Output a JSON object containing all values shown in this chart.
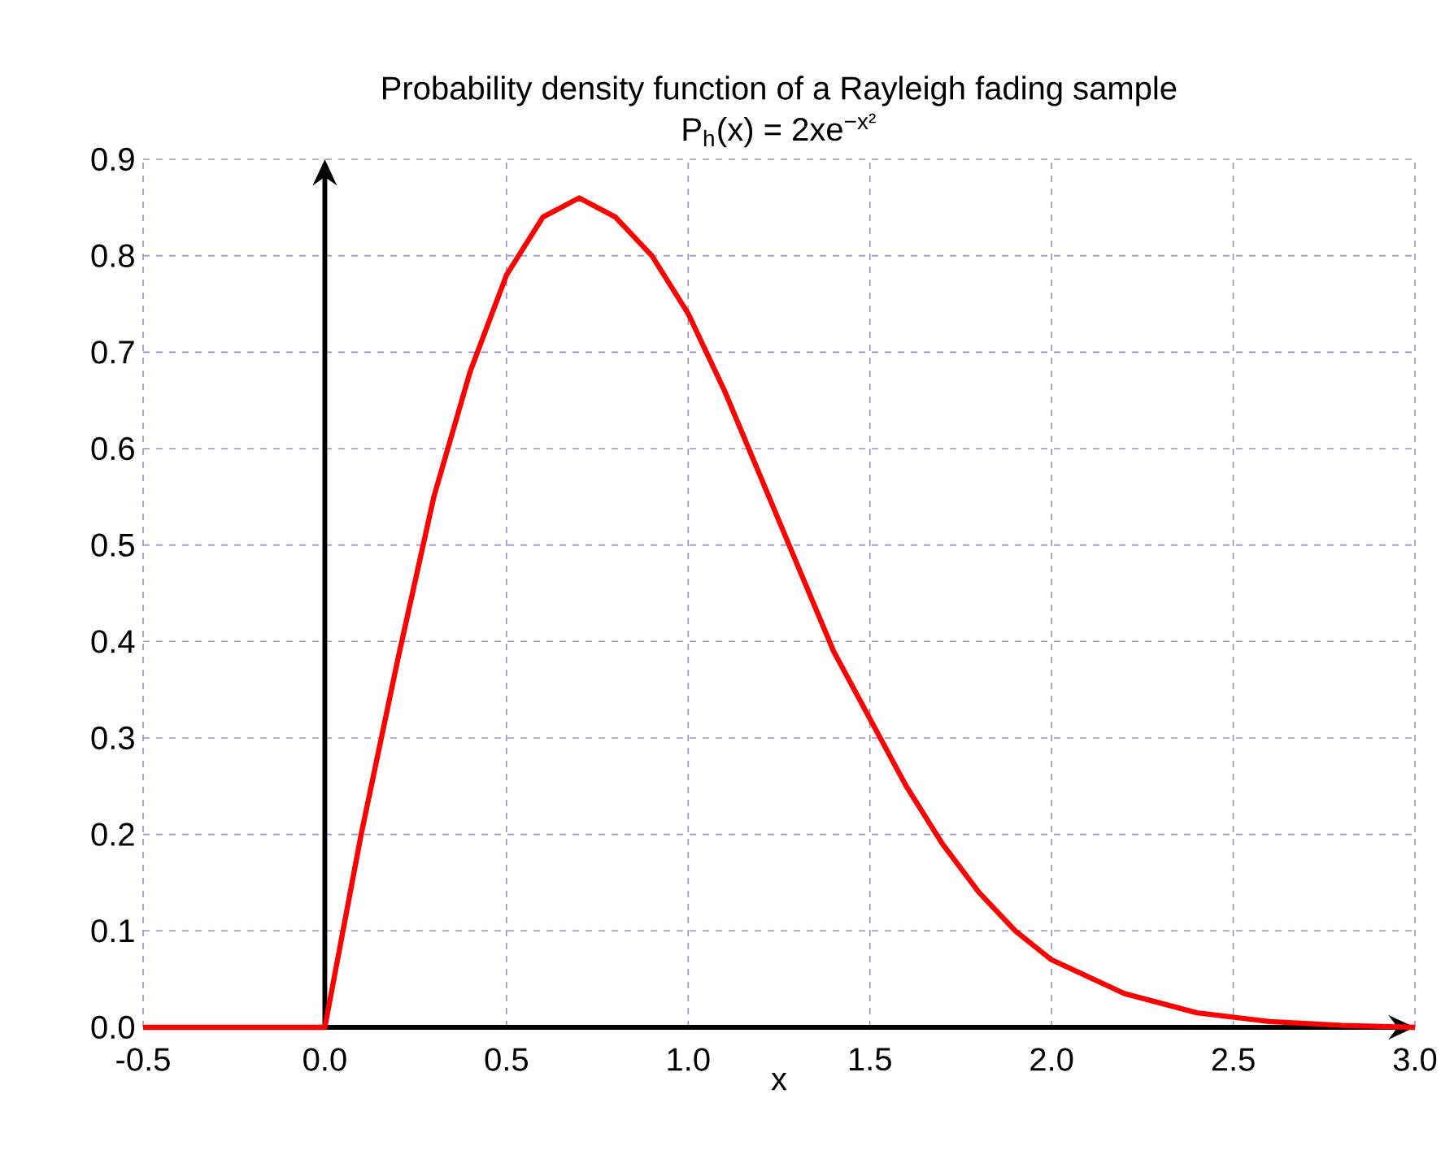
{
  "chart_data": {
    "type": "line",
    "title": "Probability density function of a Rayleigh fading sample",
    "subtitle": "P$_{h}$(x) = 2xe$^{−x²}$",
    "xlabel": "x",
    "x": [
      -0.5,
      0.0,
      0.1,
      0.2,
      0.3,
      0.4,
      0.5,
      0.6,
      0.7,
      0.8,
      0.9,
      1.0,
      1.1,
      1.2,
      1.3,
      1.4,
      1.5,
      1.6,
      1.7,
      1.8,
      1.9,
      2.0,
      2.2,
      2.4,
      2.6,
      2.8,
      3.0
    ],
    "series": [
      {
        "color": "#ff0000",
        "values": [
          0.0,
          0.0,
          0.2,
          0.38,
          0.55,
          0.68,
          0.78,
          0.84,
          0.86,
          0.84,
          0.8,
          0.74,
          0.66,
          0.57,
          0.48,
          0.39,
          0.32,
          0.25,
          0.19,
          0.14,
          0.1,
          0.07,
          0.035,
          0.015,
          0.006,
          0.002,
          0.0
        ]
      }
    ],
    "xlim": [
      -0.5,
      3.0
    ],
    "ylim": [
      0,
      0.9
    ],
    "xticks": [
      -0.5,
      {
        "value": 0,
        "label": "0.0"
      },
      0.5,
      {
        "value": 1,
        "label": "1.0"
      },
      1.5,
      {
        "value": 2,
        "label": "2.0"
      },
      2.5,
      {
        "value": 3,
        "label": "3.0"
      }
    ],
    "yticks": [
      {
        "value": 0,
        "label": "0.0"
      },
      0.1,
      0.2,
      0.3,
      0.4,
      0.5,
      0.6,
      0.7,
      0.8,
      0.9
    ],
    "grid": true,
    "marker": "none",
    "line_style": "solid"
  }
}
